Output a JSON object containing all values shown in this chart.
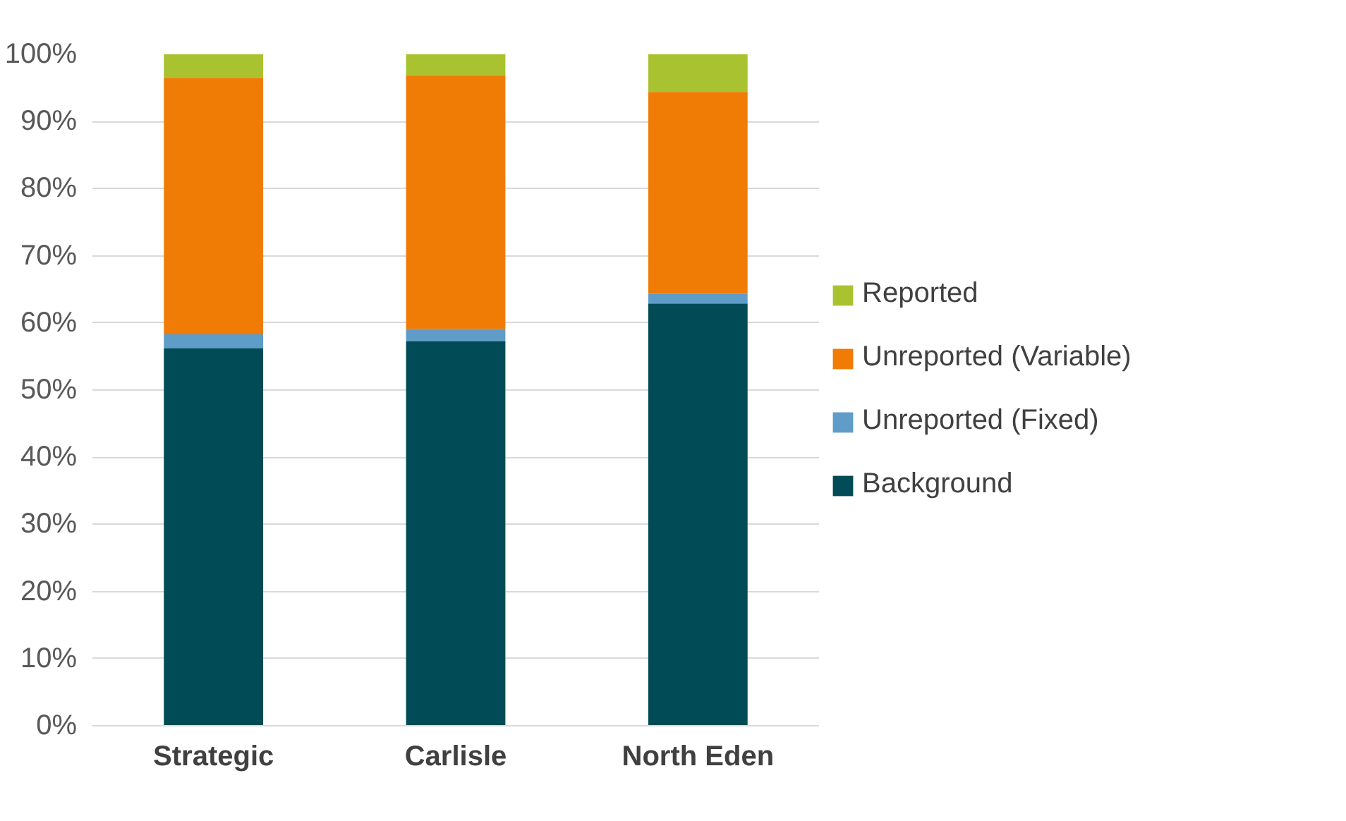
{
  "chart_data": {
    "type": "bar",
    "stacked": true,
    "categories": [
      "Strategic",
      "Carlisle",
      "North Eden"
    ],
    "series": [
      {
        "name": "Background",
        "color": "#004b56",
        "values": [
          56.2,
          57.3,
          62.9
        ]
      },
      {
        "name": "Unreported (Fixed)",
        "color": "#5f9cc8",
        "values": [
          2.1,
          1.8,
          1.4
        ]
      },
      {
        "name": "Unreported (Variable)",
        "color": "#f07c05",
        "values": [
          38.2,
          37.8,
          30.1
        ]
      },
      {
        "name": "Reported",
        "color": "#a9c22f",
        "values": [
          3.5,
          3.1,
          5.6
        ]
      }
    ],
    "ylim": [
      0,
      100
    ],
    "yticks": [
      {
        "value": 0,
        "label": "0%"
      },
      {
        "value": 10,
        "label": "10%"
      },
      {
        "value": 20,
        "label": "20%"
      },
      {
        "value": 30,
        "label": "30%"
      },
      {
        "value": 40,
        "label": "40%"
      },
      {
        "value": 50,
        "label": "50%"
      },
      {
        "value": 60,
        "label": "60%"
      },
      {
        "value": 70,
        "label": "70%"
      },
      {
        "value": 80,
        "label": "80%"
      },
      {
        "value": 90,
        "label": "90%"
      },
      {
        "value": 100,
        "label": "100%"
      }
    ],
    "grid": "y",
    "legend": "right"
  }
}
